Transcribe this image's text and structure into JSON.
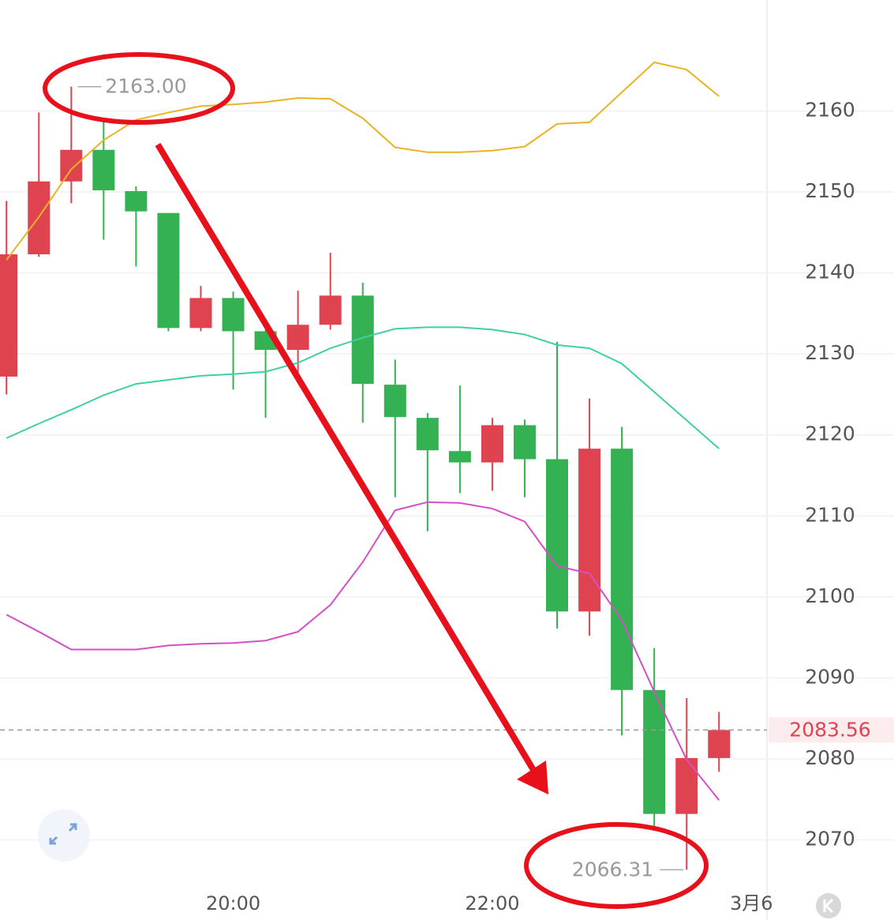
{
  "chart_data": {
    "type": "candlestick",
    "x": [
      18.25,
      18.5,
      18.75,
      19,
      19.25,
      19.5,
      19.75,
      20,
      20.25,
      20.5,
      20.75,
      21,
      21.25,
      21.5,
      21.75,
      22,
      22.25,
      22.5,
      22.75,
      23,
      23.25,
      23.5,
      23.75
    ],
    "open": [
      2127.2,
      2142.3,
      2151.3,
      2155.2,
      2150.1,
      2147.4,
      2133.2,
      2136.9,
      2132.8,
      2130.5,
      2133.6,
      2137.2,
      2126.2,
      2122.1,
      2118.0,
      2116.6,
      2121.2,
      2117.0,
      2098.2,
      2118.3,
      2088.5,
      2073.2,
      2080.1
    ],
    "high": [
      2148.9,
      2159.8,
      2163.0,
      2158.6,
      2150.7,
      2147.4,
      2138.4,
      2137.7,
      2133.8,
      2137.8,
      2142.5,
      2138.8,
      2129.3,
      2122.7,
      2126.1,
      2122.1,
      2121.9,
      2131.5,
      2124.5,
      2121.0,
      2093.7,
      2087.5,
      2085.8
    ],
    "low": [
      2125.0,
      2142.0,
      2148.6,
      2144.1,
      2140.8,
      2132.8,
      2132.8,
      2125.6,
      2122.1,
      2126.4,
      2133.0,
      2121.5,
      2112.3,
      2108.1,
      2112.8,
      2113.1,
      2112.3,
      2096.1,
      2095.2,
      2082.9,
      2071.6,
      2066.31,
      2078.4
    ],
    "close": [
      2142.3,
      2151.3,
      2155.2,
      2150.2,
      2147.6,
      2133.2,
      2136.9,
      2132.8,
      2130.5,
      2133.6,
      2137.2,
      2126.3,
      2122.2,
      2118.1,
      2116.6,
      2121.2,
      2117.0,
      2098.2,
      2118.3,
      2088.5,
      2073.2,
      2080.1,
      2083.56
    ],
    "up_color": "#e04350",
    "down_color": "#34b152",
    "bands": [
      {
        "color": "#e8b425",
        "values": [
          2141.6,
          2146.9,
          2152.8,
          2156.4,
          2158.9,
          2159.8,
          2160.6,
          2160.8,
          2161.1,
          2161.6,
          2161.5,
          2159.1,
          2155.5,
          2154.9,
          2154.9,
          2155.1,
          2155.6,
          2158.4,
          2158.6,
          2162.3,
          2166.0,
          2165.1,
          2161.8
        ]
      },
      {
        "color": "#3fcfa6",
        "values": [
          2119.6,
          2121.4,
          2123.1,
          2124.9,
          2126.3,
          2126.8,
          2127.3,
          2127.5,
          2127.8,
          2128.9,
          2130.7,
          2132.0,
          2133.1,
          2133.3,
          2133.3,
          2133.0,
          2132.4,
          2131.1,
          2130.7,
          2128.8,
          2125.3,
          2121.8,
          2118.3
        ]
      },
      {
        "color": "#d54fc4",
        "values": [
          2097.8,
          2095.7,
          2093.5,
          2093.5,
          2093.5,
          2094.0,
          2094.2,
          2094.3,
          2094.6,
          2095.7,
          2099.0,
          2104.3,
          2110.7,
          2111.7,
          2111.6,
          2110.9,
          2109.3,
          2103.8,
          2102.9,
          2097.1,
          2088.3,
          2079.9,
          2074.9
        ]
      }
    ],
    "xlim": [
      18.2,
      24.12
    ],
    "ylim": [
      2064.1,
      2173.7
    ],
    "xticks": [
      {
        "value": 20,
        "label": "20:00"
      },
      {
        "value": 22,
        "label": "22:00"
      },
      {
        "value": 24,
        "label": "3月6"
      }
    ],
    "yticks": [
      2070,
      2080,
      2090,
      2100,
      2110,
      2120,
      2130,
      2140,
      2150,
      2160
    ],
    "grid": true,
    "max_label": {
      "value": 2163,
      "label": "2163.00"
    },
    "min_label": 2066.31,
    "last_price": 2083.56
  }
}
